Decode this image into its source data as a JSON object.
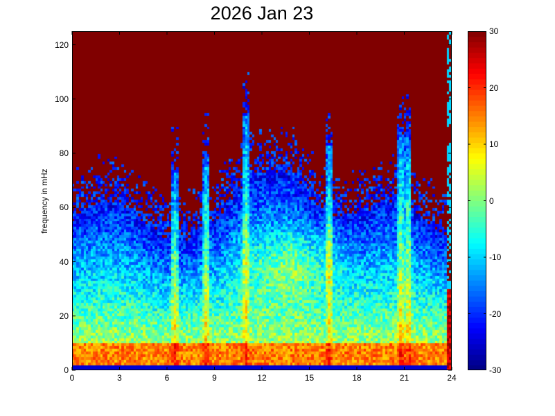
{
  "chart_data": {
    "type": "heatmap",
    "title": "2026 Jan 23",
    "xlabel": "",
    "ylabel": "frequency in mHz",
    "x_range": [
      0,
      24
    ],
    "y_range": [
      0,
      125
    ],
    "x_ticks": [
      0,
      3,
      6,
      9,
      12,
      15,
      18,
      21,
      24
    ],
    "x_tick_labels": [
      "0",
      "3",
      "6",
      "9",
      "12",
      "15",
      "18",
      "21",
      "24"
    ],
    "y_ticks": [
      0,
      20,
      40,
      60,
      80,
      100,
      120
    ],
    "y_tick_labels": [
      "0",
      "20",
      "40",
      "60",
      "80",
      "100",
      "120"
    ],
    "colorbar": {
      "range": [
        -30,
        30
      ],
      "ticks": [
        -30,
        -20,
        -10,
        0,
        10,
        20,
        30
      ],
      "tick_labels": [
        "-30",
        "-20",
        "-10",
        "0",
        "10",
        "20",
        "30"
      ],
      "colormap": "jet"
    },
    "grid": false,
    "background_level": 30,
    "low_freq_band": {
      "freq_max": 10,
      "level": 15
    },
    "mid_freq_region": {
      "time_range": [
        11,
        17
      ],
      "freq_range": [
        30,
        50
      ],
      "level": 5
    },
    "spikes_time": [
      6.5,
      8.5,
      11,
      16.3,
      20.8,
      21.3
    ]
  }
}
